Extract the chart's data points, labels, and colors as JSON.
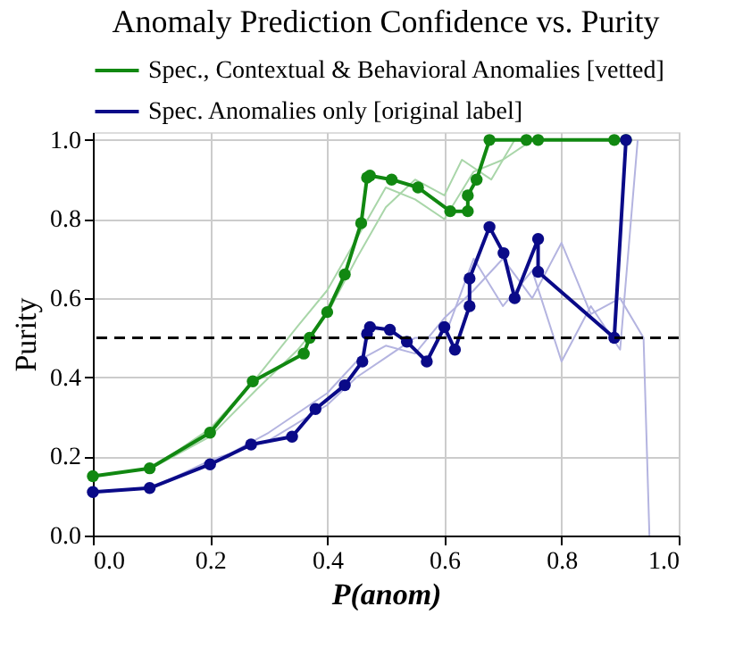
{
  "chart_data": {
    "type": "line",
    "title": "Anomaly Prediction Confidence vs. Purity",
    "xlabel": "P(anom)",
    "ylabel": "Purity",
    "xlim": [
      0,
      1
    ],
    "ylim": [
      0,
      1.02
    ],
    "xticks": [
      {
        "value": 0,
        "label": "0.0"
      },
      0.2,
      0.4,
      0.6,
      0.8,
      {
        "value": 1,
        "label": "1.0"
      }
    ],
    "yticks": [
      {
        "value": 0,
        "label": "0.0"
      },
      0.2,
      0.4,
      0.6,
      0.8,
      {
        "value": 1,
        "label": "1.0"
      }
    ],
    "grid": true,
    "legend": "top",
    "series": [
      {
        "color": "#a9d6a9",
        "marker": "none",
        "x": [
          0,
          0.1,
          0.2,
          0.28,
          0.35,
          0.4,
          0.45,
          0.5,
          0.55,
          0.6,
          0.65,
          0.7,
          0.75,
          0.8
        ],
        "values": [
          0.15,
          0.17,
          0.27,
          0.4,
          0.53,
          0.62,
          0.75,
          0.88,
          0.85,
          0.8,
          0.92,
          0.95,
          1.0,
          1.0
        ]
      },
      {
        "color": "#a9d6a9",
        "marker": "none",
        "x": [
          0,
          0.1,
          0.2,
          0.28,
          0.35,
          0.4,
          0.45,
          0.5,
          0.55,
          0.6,
          0.63,
          0.68,
          0.72,
          0.78
        ],
        "values": [
          0.15,
          0.17,
          0.25,
          0.37,
          0.47,
          0.56,
          0.7,
          0.83,
          0.9,
          0.86,
          0.95,
          0.9,
          1.0,
          1.0
        ]
      },
      {
        "color": "#b4b4e0",
        "marker": "none",
        "x": [
          0,
          0.1,
          0.2,
          0.3,
          0.4,
          0.45,
          0.5,
          0.55,
          0.6,
          0.65,
          0.7,
          0.75,
          0.8,
          0.85,
          0.9,
          0.94,
          0.95
        ],
        "values": [
          0.11,
          0.12,
          0.18,
          0.26,
          0.36,
          0.44,
          0.48,
          0.46,
          0.55,
          0.62,
          0.7,
          0.6,
          0.74,
          0.56,
          0.6,
          0.5,
          0.0
        ]
      },
      {
        "color": "#b4b4e0",
        "marker": "none",
        "x": [
          0,
          0.1,
          0.2,
          0.3,
          0.4,
          0.45,
          0.5,
          0.55,
          0.6,
          0.65,
          0.7,
          0.75,
          0.8,
          0.85,
          0.9,
          0.93
        ],
        "values": [
          0.11,
          0.12,
          0.19,
          0.24,
          0.33,
          0.4,
          0.45,
          0.5,
          0.5,
          0.7,
          0.58,
          0.67,
          0.44,
          0.58,
          0.47,
          1.0
        ]
      },
      {
        "name": "Spec., Contextual & Behavioral Anomalies [vetted]",
        "color": "#118811",
        "marker": "circle",
        "x": [
          0,
          0.097,
          0.2,
          0.273,
          0.36,
          0.37,
          0.4,
          0.43,
          0.458,
          0.468,
          0.473,
          0.51,
          0.555,
          0.61,
          0.64,
          0.64,
          0.655,
          0.677,
          0.74,
          0.76,
          0.89,
          0.91
        ],
        "values": [
          0.15,
          0.17,
          0.26,
          0.39,
          0.46,
          0.5,
          0.565,
          0.66,
          0.79,
          0.905,
          0.91,
          0.9,
          0.88,
          0.82,
          0.82,
          0.86,
          0.9,
          1.0,
          1.0,
          1.0,
          1.0,
          1.0
        ]
      },
      {
        "name": "Spec. Anomalies only [original label]",
        "color": "#0a0a88",
        "marker": "circle",
        "x": [
          0,
          0.097,
          0.2,
          0.27,
          0.34,
          0.38,
          0.43,
          0.46,
          0.468,
          0.473,
          0.507,
          0.536,
          0.57,
          0.6,
          0.618,
          0.643,
          0.643,
          0.677,
          0.701,
          0.72,
          0.76,
          0.76,
          0.89,
          0.91
        ],
        "values": [
          0.11,
          0.12,
          0.18,
          0.23,
          0.25,
          0.32,
          0.38,
          0.44,
          0.51,
          0.527,
          0.52,
          0.49,
          0.44,
          0.527,
          0.47,
          0.58,
          0.65,
          0.78,
          0.714,
          0.6,
          0.75,
          0.667,
          0.5,
          1.0
        ]
      }
    ],
    "ref_lines": [
      {
        "axis": "y",
        "value": 0.5,
        "color": "#000000",
        "line_style": "dashed"
      }
    ]
  }
}
